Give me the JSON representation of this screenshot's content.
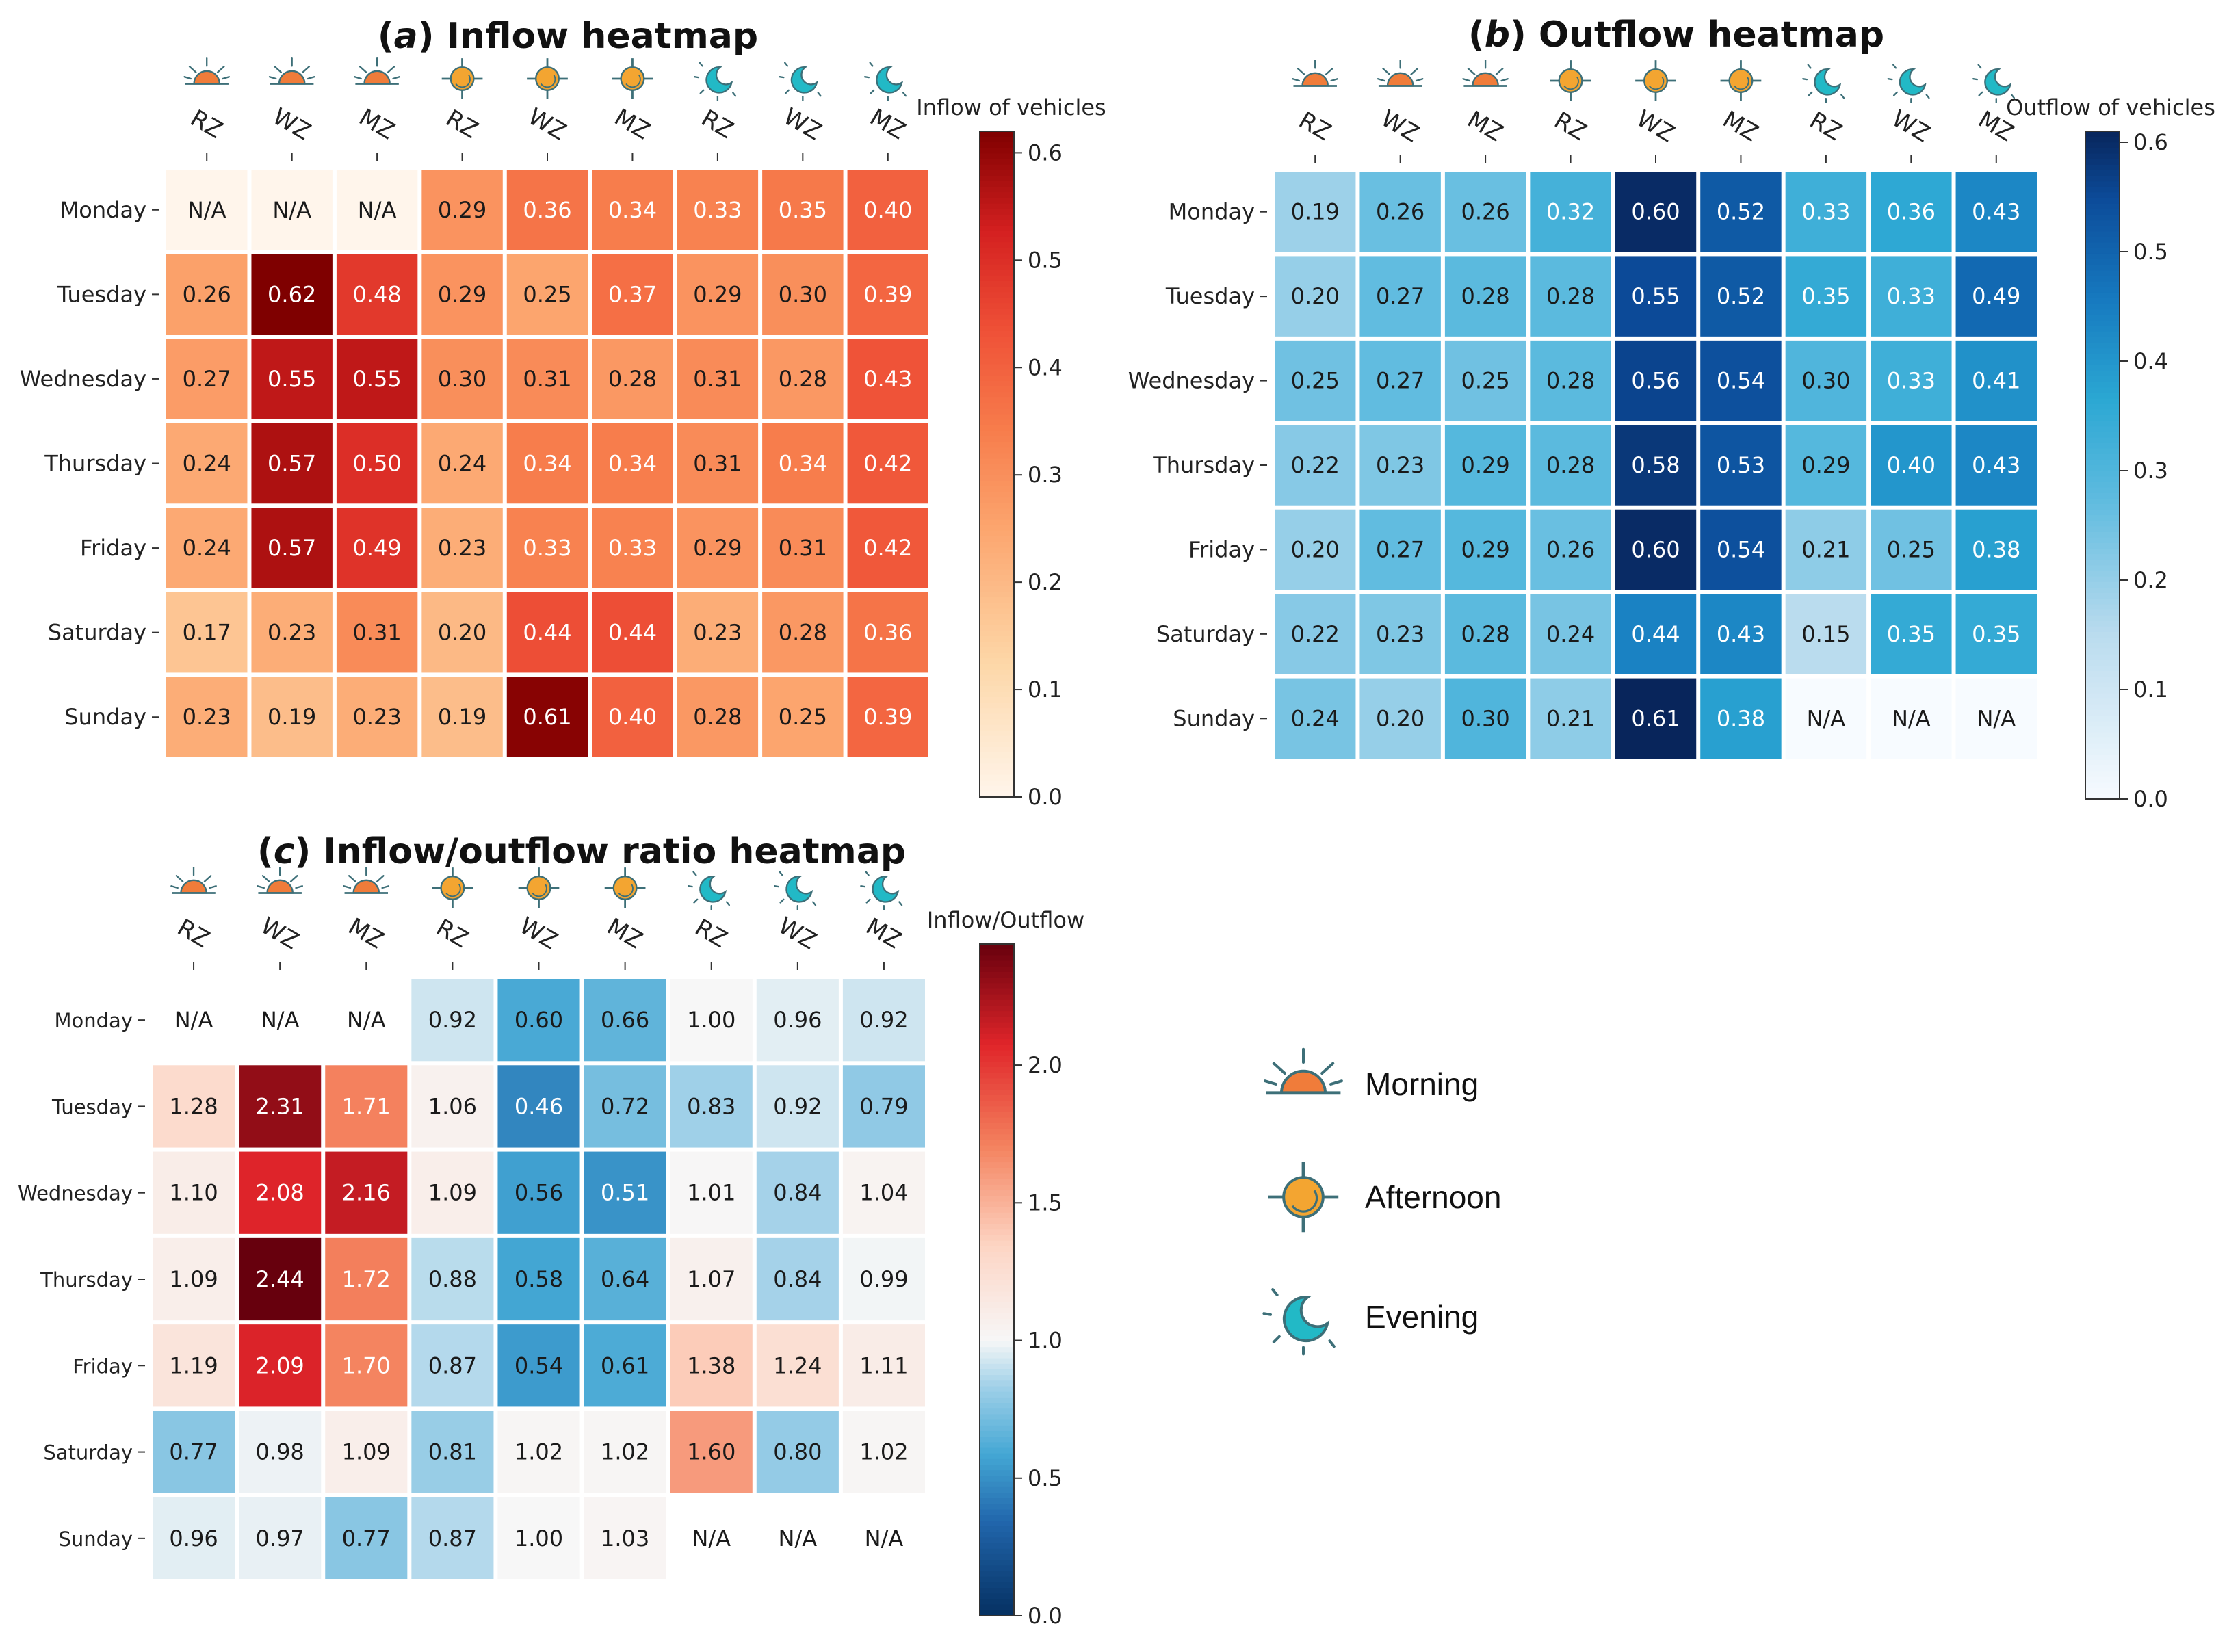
{
  "chart_data": [
    {
      "type": "heatmap",
      "panel_letter": "a",
      "title": " Inflow heatmap",
      "rows": [
        "Monday",
        "Tuesday",
        "Wednesday",
        "Thursday",
        "Friday",
        "Saturday",
        "Sunday"
      ],
      "columns": [
        {
          "label": "RZ",
          "period": "morning"
        },
        {
          "label": "WZ",
          "period": "morning"
        },
        {
          "label": "MZ",
          "period": "morning"
        },
        {
          "label": "RZ",
          "period": "afternoon"
        },
        {
          "label": "WZ",
          "period": "afternoon"
        },
        {
          "label": "MZ",
          "period": "afternoon"
        },
        {
          "label": "RZ",
          "period": "evening"
        },
        {
          "label": "WZ",
          "period": "evening"
        },
        {
          "label": "MZ",
          "period": "evening"
        }
      ],
      "values": [
        [
          null,
          null,
          null,
          0.29,
          0.36,
          0.34,
          0.33,
          0.35,
          0.4
        ],
        [
          0.26,
          0.62,
          0.48,
          0.29,
          0.25,
          0.37,
          0.29,
          0.3,
          0.39
        ],
        [
          0.27,
          0.55,
          0.55,
          0.3,
          0.31,
          0.28,
          0.31,
          0.28,
          0.43
        ],
        [
          0.24,
          0.57,
          0.5,
          0.24,
          0.34,
          0.34,
          0.31,
          0.34,
          0.42
        ],
        [
          0.24,
          0.57,
          0.49,
          0.23,
          0.33,
          0.33,
          0.29,
          0.31,
          0.42
        ],
        [
          0.17,
          0.23,
          0.31,
          0.2,
          0.44,
          0.44,
          0.23,
          0.28,
          0.36
        ],
        [
          0.23,
          0.19,
          0.23,
          0.19,
          0.61,
          0.4,
          0.28,
          0.25,
          0.39
        ]
      ],
      "missing_label": "N/A",
      "colorbar": {
        "label": "Inflow of vehicles",
        "min": 0.0,
        "max": 0.62,
        "ticks": [
          0.0,
          0.1,
          0.2,
          0.3,
          0.4,
          0.5,
          0.6
        ],
        "tick_labels": [
          "0.0",
          "0.1",
          "0.2",
          "0.3",
          "0.4",
          "0.5",
          "0.6"
        ],
        "colormap": "reds"
      }
    },
    {
      "type": "heatmap",
      "panel_letter": "b",
      "title": " Outflow heatmap",
      "rows": [
        "Monday",
        "Tuesday",
        "Wednesday",
        "Thursday",
        "Friday",
        "Saturday",
        "Sunday"
      ],
      "columns": [
        {
          "label": "RZ",
          "period": "morning"
        },
        {
          "label": "WZ",
          "period": "morning"
        },
        {
          "label": "MZ",
          "period": "morning"
        },
        {
          "label": "RZ",
          "period": "afternoon"
        },
        {
          "label": "WZ",
          "period": "afternoon"
        },
        {
          "label": "MZ",
          "period": "afternoon"
        },
        {
          "label": "RZ",
          "period": "evening"
        },
        {
          "label": "WZ",
          "period": "evening"
        },
        {
          "label": "MZ",
          "period": "evening"
        }
      ],
      "values": [
        [
          0.19,
          0.26,
          0.26,
          0.32,
          0.6,
          0.52,
          0.33,
          0.36,
          0.43
        ],
        [
          0.2,
          0.27,
          0.28,
          0.28,
          0.55,
          0.52,
          0.35,
          0.33,
          0.49
        ],
        [
          0.25,
          0.27,
          0.25,
          0.28,
          0.56,
          0.54,
          0.3,
          0.33,
          0.41
        ],
        [
          0.22,
          0.23,
          0.29,
          0.28,
          0.58,
          0.53,
          0.29,
          0.4,
          0.43
        ],
        [
          0.2,
          0.27,
          0.29,
          0.26,
          0.6,
          0.54,
          0.21,
          0.25,
          0.38
        ],
        [
          0.22,
          0.23,
          0.28,
          0.24,
          0.44,
          0.43,
          0.15,
          0.35,
          0.35
        ],
        [
          0.24,
          0.2,
          0.3,
          0.21,
          0.61,
          0.38,
          null,
          null,
          null
        ]
      ],
      "missing_label": "N/A",
      "colorbar": {
        "label": "Outflow of vehicles",
        "min": 0.0,
        "max": 0.61,
        "ticks": [
          0.0,
          0.1,
          0.2,
          0.3,
          0.4,
          0.5,
          0.6
        ],
        "tick_labels": [
          "0.0",
          "0.1",
          "0.2",
          "0.3",
          "0.4",
          "0.5",
          "0.6"
        ],
        "colormap": "blues"
      }
    },
    {
      "type": "heatmap",
      "panel_letter": "c",
      "title": " Inflow/outflow ratio heatmap",
      "rows": [
        "Monday",
        "Tuesday",
        "Wednesday",
        "Thursday",
        "Friday",
        "Saturday",
        "Sunday"
      ],
      "columns": [
        {
          "label": "RZ",
          "period": "morning"
        },
        {
          "label": "WZ",
          "period": "morning"
        },
        {
          "label": "MZ",
          "period": "morning"
        },
        {
          "label": "RZ",
          "period": "afternoon"
        },
        {
          "label": "WZ",
          "period": "afternoon"
        },
        {
          "label": "MZ",
          "period": "afternoon"
        },
        {
          "label": "RZ",
          "period": "evening"
        },
        {
          "label": "WZ",
          "period": "evening"
        },
        {
          "label": "MZ",
          "period": "evening"
        }
      ],
      "values": [
        [
          null,
          null,
          null,
          0.92,
          0.6,
          0.66,
          1.0,
          0.96,
          0.92
        ],
        [
          1.28,
          2.31,
          1.71,
          1.06,
          0.46,
          0.72,
          0.83,
          0.92,
          0.79
        ],
        [
          1.1,
          2.08,
          2.16,
          1.09,
          0.56,
          0.51,
          1.01,
          0.84,
          1.04
        ],
        [
          1.09,
          2.44,
          1.72,
          0.88,
          0.58,
          0.64,
          1.07,
          0.84,
          0.99
        ],
        [
          1.19,
          2.09,
          1.7,
          0.87,
          0.54,
          0.61,
          1.38,
          1.24,
          1.11
        ],
        [
          0.77,
          0.98,
          1.09,
          0.81,
          1.02,
          1.02,
          1.6,
          0.8,
          1.02
        ],
        [
          0.96,
          0.97,
          0.77,
          0.87,
          1.0,
          1.03,
          null,
          null,
          null
        ]
      ],
      "missing_label": "N/A",
      "colorbar": {
        "label": "Inflow/Outflow",
        "min": 0.0,
        "max": 2.44,
        "center": 1.0,
        "ticks": [
          0.0,
          0.5,
          1.0,
          1.5,
          2.0
        ],
        "tick_labels": [
          "0.0",
          "0.5",
          "1.0",
          "1.5",
          "2.0"
        ],
        "colormap": "diverging"
      }
    }
  ],
  "legend": [
    {
      "period": "morning",
      "label": "Morning"
    },
    {
      "period": "afternoon",
      "label": "Afternoon"
    },
    {
      "period": "evening",
      "label": "Evening"
    }
  ],
  "colors": {
    "sun_orange": "#f07c3a",
    "afternoon_orange": "#f3a531",
    "moon_teal": "#22b9c6",
    "icon_stroke": "#3d6f78"
  }
}
